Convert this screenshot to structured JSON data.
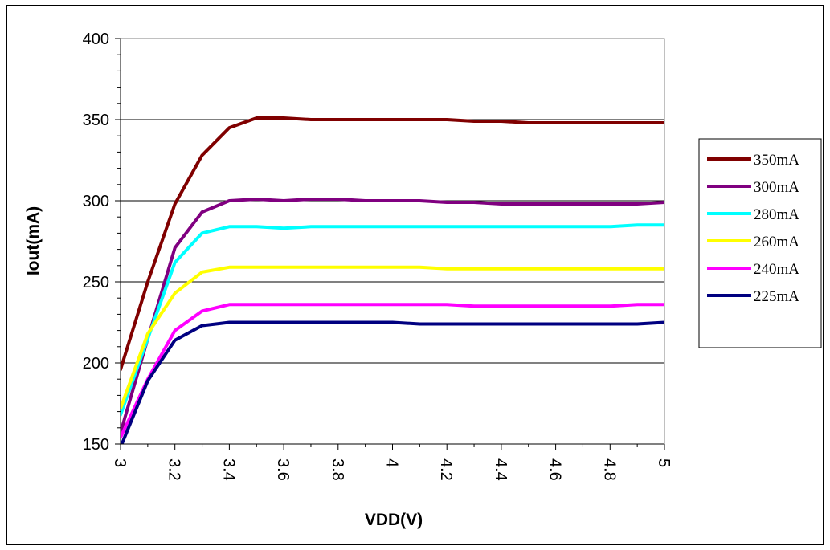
{
  "chart_data": {
    "type": "line",
    "xlabel": "VDD(V)",
    "ylabel": "Iout(mA)",
    "xlim": [
      3,
      5
    ],
    "ylim": [
      150,
      400
    ],
    "x_ticks": [
      "3",
      "3.2",
      "3.4",
      "3.6",
      "3.8",
      "4",
      "4.2",
      "4.4",
      "4.6",
      "4.8",
      "5"
    ],
    "y_ticks": [
      "150",
      "200",
      "250",
      "300",
      "350",
      "400"
    ],
    "grid": "horizontal major gridlines at 200, 250, 300, 350",
    "legend_position": "right",
    "x": [
      3.0,
      3.1,
      3.2,
      3.3,
      3.4,
      3.5,
      3.6,
      3.7,
      3.8,
      3.9,
      4.0,
      4.1,
      4.2,
      4.3,
      4.4,
      4.5,
      4.6,
      4.7,
      4.8,
      4.9,
      5.0
    ],
    "series": [
      {
        "name": "350mA",
        "color": "#800000",
        "values": [
          196,
          250,
          298,
          328,
          345,
          351,
          351,
          350,
          350,
          350,
          350,
          350,
          350,
          349,
          349,
          348,
          348,
          348,
          348,
          348,
          348
        ]
      },
      {
        "name": "300mA",
        "color": "#800080",
        "values": [
          157,
          215,
          271,
          293,
          300,
          301,
          300,
          301,
          301,
          300,
          300,
          300,
          299,
          299,
          298,
          298,
          298,
          298,
          298,
          298,
          299
        ]
      },
      {
        "name": "280mA",
        "color": "#00ffff",
        "values": [
          168,
          215,
          262,
          280,
          284,
          284,
          283,
          284,
          284,
          284,
          284,
          284,
          284,
          284,
          284,
          284,
          284,
          284,
          284,
          285,
          285
        ]
      },
      {
        "name": "260mA",
        "color": "#ffff00",
        "values": [
          172,
          218,
          243,
          256,
          259,
          259,
          259,
          259,
          259,
          259,
          259,
          259,
          258,
          258,
          258,
          258,
          258,
          258,
          258,
          258,
          258
        ]
      },
      {
        "name": "240mA",
        "color": "#ff00ff",
        "values": [
          154,
          190,
          220,
          232,
          236,
          236,
          236,
          236,
          236,
          236,
          236,
          236,
          236,
          235,
          235,
          235,
          235,
          235,
          235,
          236,
          236
        ]
      },
      {
        "name": "225mA",
        "color": "#000080",
        "values": [
          148,
          189,
          214,
          223,
          225,
          225,
          225,
          225,
          225,
          225,
          225,
          224,
          224,
          224,
          224,
          224,
          224,
          224,
          224,
          224,
          225
        ]
      }
    ]
  }
}
